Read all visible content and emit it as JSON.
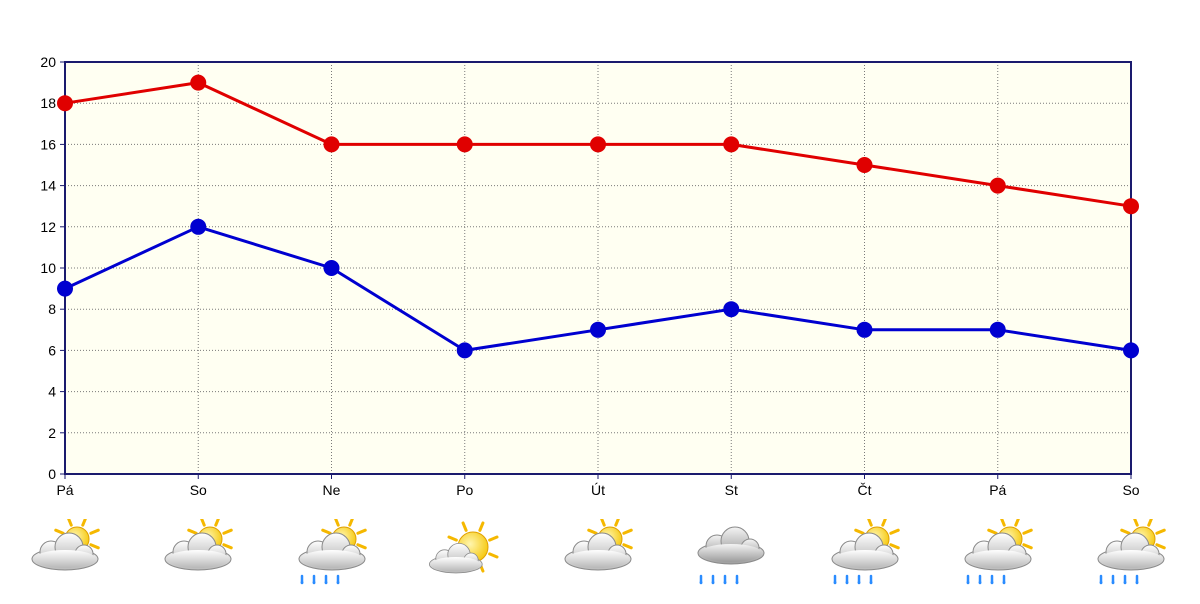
{
  "chart_data": {
    "type": "line",
    "categories": [
      "Pá",
      "So",
      "Ne",
      "Po",
      "Út",
      "St",
      "Čt",
      "Pá",
      "So"
    ],
    "series": [
      {
        "values": [
          18,
          19,
          16,
          16,
          16,
          16,
          15,
          14,
          13
        ],
        "color": "#e00000"
      },
      {
        "values": [
          9,
          12,
          10,
          6,
          7,
          8,
          7,
          7,
          6
        ],
        "color": "#0000d0"
      }
    ],
    "ylim": [
      0,
      20
    ],
    "yticks": [
      "0",
      "2",
      "4",
      "6",
      "8",
      "10",
      "12",
      "14",
      "16",
      "18",
      "20"
    ],
    "grid": true,
    "plot_background": "#fffff2",
    "axis_color": "#1a1a6e"
  },
  "weather_icons": [
    "sun-behind-cloud-icon",
    "sun-behind-cloud-icon",
    "sun-cloud-rain-icon",
    "sun-mostly-clear-icon",
    "sun-behind-cloud-icon",
    "cloud-rain-icon",
    "sun-cloud-rain-icon",
    "sun-cloud-rain-icon",
    "sun-cloud-rain-icon"
  ]
}
